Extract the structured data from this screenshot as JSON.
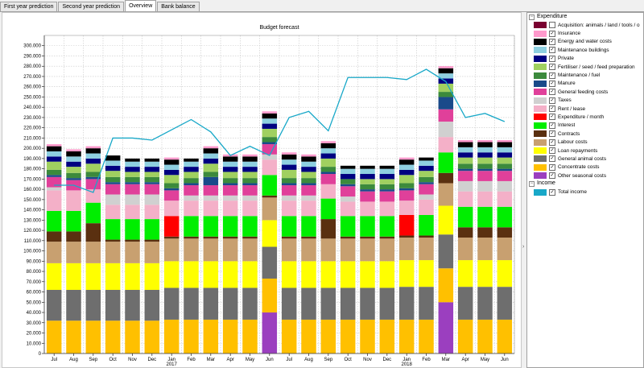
{
  "tabs": [
    {
      "label": "First year prediction",
      "active": false
    },
    {
      "label": "Second year prediction",
      "active": false
    },
    {
      "label": "Overview",
      "active": true
    },
    {
      "label": "Bank balance",
      "active": false
    }
  ],
  "legend": {
    "expenditure_label": "Expenditure",
    "income_label": "Income"
  },
  "chart_data": {
    "type": "bar",
    "stacked": true,
    "title": "Budget forecast",
    "xlabel": "",
    "ylabel": "",
    "ylim": [
      0,
      310000
    ],
    "yticks": [
      0,
      10000,
      20000,
      30000,
      40000,
      50000,
      60000,
      70000,
      80000,
      90000,
      100000,
      110000,
      120000,
      130000,
      140000,
      150000,
      160000,
      170000,
      180000,
      190000,
      200000,
      210000,
      220000,
      230000,
      240000,
      250000,
      260000,
      270000,
      280000,
      290000,
      300000
    ],
    "ytick_labels": [
      "0",
      "10.000",
      "20.000",
      "30.000",
      "40.000",
      "50.000",
      "60.000",
      "70.000",
      "80.000",
      "90.000",
      "100.000",
      "110.000",
      "120.000",
      "130.000",
      "140.000",
      "150.000",
      "160.000",
      "170.000",
      "180.000",
      "190.000",
      "200.000",
      "210.000",
      "220.000",
      "230.000",
      "240.000",
      "250.000",
      "260.000",
      "270.000",
      "280.000",
      "290.000",
      "300.000"
    ],
    "grid": true,
    "categories": [
      "Jul",
      "Aug",
      "Sep",
      "Oct",
      "Nov",
      "Dec",
      "Jan",
      "Feb",
      "Mar",
      "Apr",
      "May",
      "Jun",
      "Jul",
      "Aug",
      "Sep",
      "Oct",
      "Nov",
      "Dec",
      "Jan",
      "Feb",
      "Mar",
      "Apr",
      "May",
      "Jun"
    ],
    "year_labels": [
      {
        "index": 6,
        "label": "2017"
      },
      {
        "index": 18,
        "label": "2018"
      }
    ],
    "series": [
      {
        "name": "Other seasonal costs",
        "color": "#9b3fbf",
        "values": [
          0,
          0,
          0,
          0,
          0,
          0,
          0,
          0,
          0,
          0,
          0,
          40000,
          0,
          0,
          0,
          0,
          0,
          0,
          0,
          0,
          50000,
          0,
          0,
          0
        ]
      },
      {
        "name": "Concentrate costs",
        "color": "#ffc000",
        "values": [
          32000,
          32000,
          32000,
          32000,
          32000,
          32000,
          33000,
          33000,
          33000,
          33000,
          33000,
          33000,
          33000,
          33000,
          33000,
          33000,
          33000,
          33000,
          33000,
          33000,
          33000,
          33000,
          33000,
          33000
        ]
      },
      {
        "name": "General animal costs",
        "color": "#6e6e6e",
        "values": [
          30000,
          30000,
          30000,
          30000,
          30000,
          30000,
          31000,
          31000,
          31000,
          31000,
          31000,
          31000,
          31000,
          31000,
          31000,
          31000,
          31000,
          31000,
          32000,
          32000,
          33000,
          32000,
          32000,
          32000
        ]
      },
      {
        "name": "Loan repayments",
        "color": "#ffff00",
        "values": [
          26000,
          26000,
          26000,
          26000,
          26000,
          26000,
          26000,
          26000,
          26000,
          26000,
          26000,
          26000,
          26000,
          26000,
          26000,
          26000,
          26000,
          26000,
          26000,
          26000,
          28000,
          26000,
          26000,
          26000
        ]
      },
      {
        "name": "Labour costs",
        "color": "#c8a070",
        "values": [
          21000,
          21000,
          21000,
          21000,
          21000,
          21000,
          22000,
          22000,
          22000,
          22000,
          22000,
          22000,
          22000,
          22000,
          22000,
          22000,
          22000,
          22000,
          22000,
          22000,
          22000,
          22000,
          22000,
          22000
        ]
      },
      {
        "name": "Contracts",
        "color": "#5a3010",
        "values": [
          10000,
          10000,
          18000,
          2000,
          2000,
          2000,
          2000,
          2000,
          2000,
          2000,
          2000,
          2000,
          2000,
          2000,
          19000,
          2000,
          2000,
          2000,
          2000,
          2000,
          10000,
          10000,
          10000,
          10000
        ]
      },
      {
        "name": "Interest",
        "color": "#00ee00",
        "values": [
          20000,
          20000,
          20000,
          20000,
          20000,
          20000,
          0,
          20000,
          20000,
          20000,
          20000,
          20000,
          20000,
          20000,
          20000,
          20000,
          20000,
          20000,
          0,
          20000,
          20000,
          20000,
          20000,
          20000
        ]
      },
      {
        "name": "Expenditure / month",
        "color": "#ff0000",
        "values": [
          0,
          0,
          0,
          0,
          0,
          0,
          20000,
          0,
          0,
          0,
          0,
          0,
          0,
          0,
          0,
          0,
          0,
          0,
          20000,
          0,
          0,
          0,
          0,
          0
        ]
      },
      {
        "name": "Rent / lease",
        "color": "#f4b0c8",
        "values": [
          20000,
          20000,
          13000,
          14000,
          14000,
          14000,
          15000,
          15000,
          15000,
          15000,
          15000,
          15000,
          15000,
          15000,
          14000,
          14000,
          14000,
          14000,
          14000,
          15000,
          15000,
          15000,
          15000,
          15000
        ]
      },
      {
        "name": "Taxes",
        "color": "#d0d0d0",
        "values": [
          3000,
          0,
          0,
          10000,
          10000,
          10000,
          0,
          5000,
          5000,
          5000,
          5000,
          5000,
          5000,
          5000,
          0,
          5000,
          0,
          0,
          0,
          5000,
          15000,
          10000,
          10000,
          10000
        ]
      },
      {
        "name": "General feeding costs",
        "color": "#e0409a",
        "values": [
          10000,
          10000,
          10000,
          10000,
          10000,
          10000,
          10000,
          10000,
          10000,
          10000,
          10000,
          10000,
          10000,
          10000,
          10000,
          10000,
          10000,
          10000,
          10000,
          10000,
          12000,
          10000,
          10000,
          10000
        ]
      },
      {
        "name": "Manure",
        "color": "#1a4a8a",
        "values": [
          2000,
          2000,
          2000,
          2000,
          2000,
          2000,
          2000,
          2000,
          8000,
          2000,
          2000,
          2000,
          2000,
          2000,
          2000,
          2000,
          2000,
          2000,
          2000,
          2000,
          12000,
          2000,
          2000,
          2000
        ]
      },
      {
        "name": "Maintenance / fuel",
        "color": "#3c8a3c",
        "values": [
          5000,
          5000,
          5000,
          5000,
          5000,
          5000,
          5000,
          5000,
          5000,
          5000,
          5000,
          5000,
          5000,
          5000,
          5000,
          5000,
          5000,
          5000,
          5000,
          5000,
          5000,
          5000,
          5000,
          5000
        ]
      },
      {
        "name": "Fertiliser / seed / feed preparation",
        "color": "#a0d060",
        "values": [
          8000,
          6000,
          8000,
          6000,
          5000,
          5000,
          8000,
          6000,
          8000,
          6000,
          6000,
          8000,
          8000,
          6000,
          8000,
          0,
          5000,
          5000,
          8000,
          6000,
          8000,
          6000,
          6000,
          6000
        ]
      },
      {
        "name": "Private",
        "color": "#000080",
        "values": [
          5000,
          5000,
          5000,
          5000,
          5000,
          5000,
          5000,
          5000,
          5000,
          5000,
          5000,
          5000,
          5000,
          5000,
          5000,
          5000,
          5000,
          5000,
          5000,
          5000,
          5000,
          5000,
          5000,
          5000
        ]
      },
      {
        "name": "Maintenance buildings",
        "color": "#8ecfe0",
        "values": [
          5000,
          5000,
          5000,
          5000,
          5000,
          5000,
          5000,
          5000,
          5000,
          5000,
          5000,
          5000,
          5000,
          5000,
          5000,
          5000,
          5000,
          5000,
          5000,
          5000,
          5000,
          5000,
          5000,
          5000
        ]
      },
      {
        "name": "Energy and water costs",
        "color": "#000000",
        "values": [
          5000,
          5000,
          5000,
          5000,
          3000,
          3000,
          5000,
          3000,
          5000,
          5000,
          5000,
          5000,
          5000,
          5000,
          5000,
          3000,
          3000,
          3000,
          5000,
          3000,
          5000,
          5000,
          5000,
          5000
        ]
      },
      {
        "name": "Insurance",
        "color": "#ff99cc",
        "values": [
          2000,
          2000,
          2000,
          0,
          0,
          0,
          2000,
          0,
          2000,
          2000,
          2000,
          2000,
          2000,
          2000,
          2000,
          0,
          0,
          0,
          2000,
          0,
          2000,
          2000,
          2000,
          2000
        ]
      },
      {
        "name": "Acquisition: animals / land / tools / o",
        "color": "#7a0030",
        "values": [
          0,
          0,
          0,
          0,
          0,
          0,
          0,
          0,
          0,
          0,
          0,
          0,
          0,
          0,
          0,
          0,
          0,
          0,
          0,
          0,
          0,
          0,
          0,
          0
        ]
      }
    ],
    "line_series": [
      {
        "name": "Total income",
        "color": "#18a8c8",
        "values": [
          164000,
          164000,
          157000,
          210000,
          210000,
          208000,
          218000,
          228000,
          216000,
          193000,
          202000,
          193000,
          230000,
          236000,
          217000,
          269000,
          269000,
          269000,
          267000,
          277000,
          265000,
          230000,
          234000,
          226000
        ]
      }
    ]
  }
}
